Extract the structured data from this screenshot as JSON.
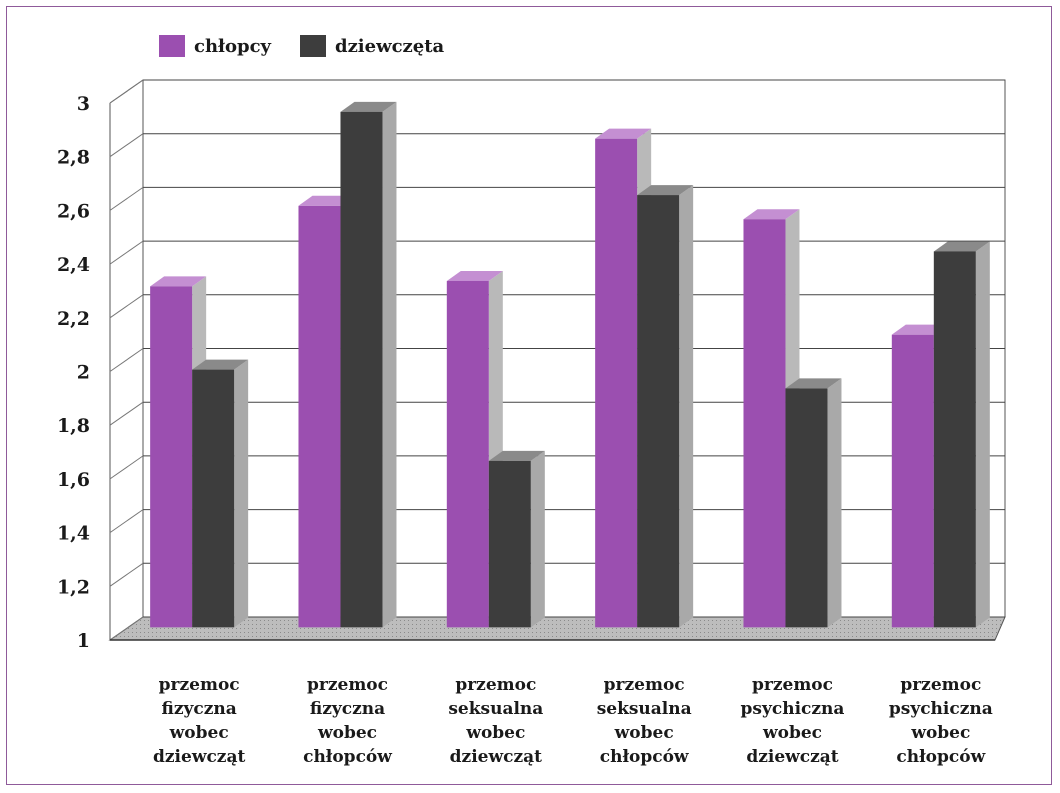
{
  "chart_data": {
    "type": "bar",
    "categories": [
      [
        "przemoc",
        "fizyczna",
        "wobec",
        "dziewcząt"
      ],
      [
        "przemoc",
        "fizyczna",
        "wobec",
        "chłopców"
      ],
      [
        "przemoc",
        "seksualna",
        "wobec",
        "dziewcząt"
      ],
      [
        "przemoc",
        "seksualna",
        "wobec",
        "chłopców"
      ],
      [
        "przemoc",
        "psychiczna",
        "wobec",
        "dziewcząt"
      ],
      [
        "przemoc",
        "psychiczna",
        "wobec",
        "chłopców"
      ]
    ],
    "series": [
      {
        "name": "chłopcy",
        "color": "#9b4fb0",
        "values": [
          2.27,
          2.57,
          2.29,
          2.82,
          2.52,
          2.09
        ]
      },
      {
        "name": "dziewczęta",
        "color": "#3d3d3d",
        "values": [
          1.96,
          2.92,
          1.62,
          2.61,
          1.89,
          2.4
        ]
      }
    ],
    "ylim": [
      1,
      3
    ],
    "yticks": [
      "1",
      "1,2",
      "1,4",
      "1,6",
      "1,8",
      "2",
      "2,2",
      "2,4",
      "2,6",
      "2,8",
      "3"
    ],
    "grid": true,
    "legend_position": "top-left",
    "style": "3d"
  }
}
